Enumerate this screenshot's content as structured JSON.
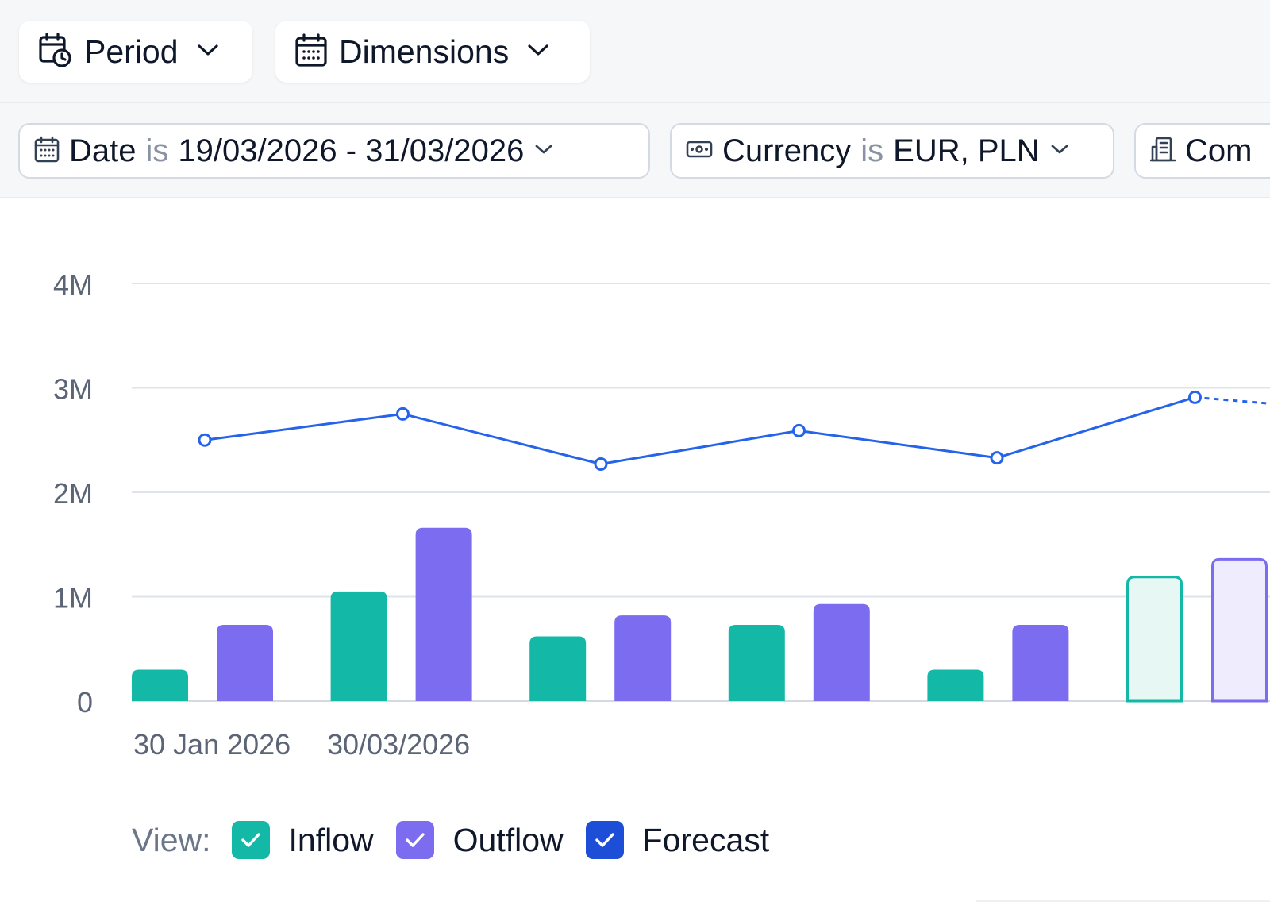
{
  "toolbar": {
    "period_label": "Period",
    "dimensions_label": "Dimensions"
  },
  "filters": [
    {
      "field": "Date",
      "operator": "is",
      "value": "19/03/2026 - 31/03/2026",
      "icon": "calendar-icon"
    },
    {
      "field": "Currency",
      "operator": "is",
      "value": "EUR, PLN",
      "icon": "banknote-icon"
    },
    {
      "field": "Com",
      "icon": "building-icon"
    }
  ],
  "legend": {
    "view_label": "View:",
    "items": [
      {
        "label": "Inflow",
        "color": "#14b8a6",
        "checked": true
      },
      {
        "label": "Outflow",
        "color": "#7c6cf0",
        "checked": true
      },
      {
        "label": "Forecast",
        "color": "#1d4ed8",
        "checked": true
      }
    ]
  },
  "chart_data": {
    "type": "bar",
    "ylim": [
      0,
      4000000
    ],
    "y_ticks": [
      {
        "value": 0,
        "label": "0"
      },
      {
        "value": 1000000,
        "label": "1M"
      },
      {
        "value": 2000000,
        "label": "2M"
      },
      {
        "value": 3000000,
        "label": "3M"
      },
      {
        "value": 4000000,
        "label": "4M"
      }
    ],
    "x_tick_labels": [
      "30 Jan 2026",
      "30/03/2026"
    ],
    "groups": 6,
    "series": [
      {
        "name": "Inflow",
        "color": "#14b8a6",
        "kind": "bar",
        "values": [
          300000,
          1050000,
          620000,
          730000,
          300000,
          1200000
        ],
        "forecast_from": 5
      },
      {
        "name": "Outflow",
        "color": "#7c6cf0",
        "kind": "bar",
        "values": [
          730000,
          1660000,
          820000,
          930000,
          730000,
          1370000
        ],
        "forecast_from": 5
      },
      {
        "name": "Forecast",
        "color": "#2563eb",
        "kind": "line",
        "values": [
          2500000,
          2750000,
          2270000,
          2590000,
          2330000,
          2910000
        ],
        "dashed_after": 5,
        "tail_value": 2850000
      }
    ]
  }
}
